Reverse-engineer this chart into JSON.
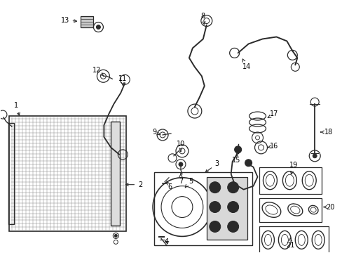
{
  "bg_color": "#ffffff",
  "line_color": "#2a2a2a",
  "fig_width": 4.89,
  "fig_height": 3.6,
  "dpi": 100,
  "font_size": 7.0,
  "lw": 1.0
}
